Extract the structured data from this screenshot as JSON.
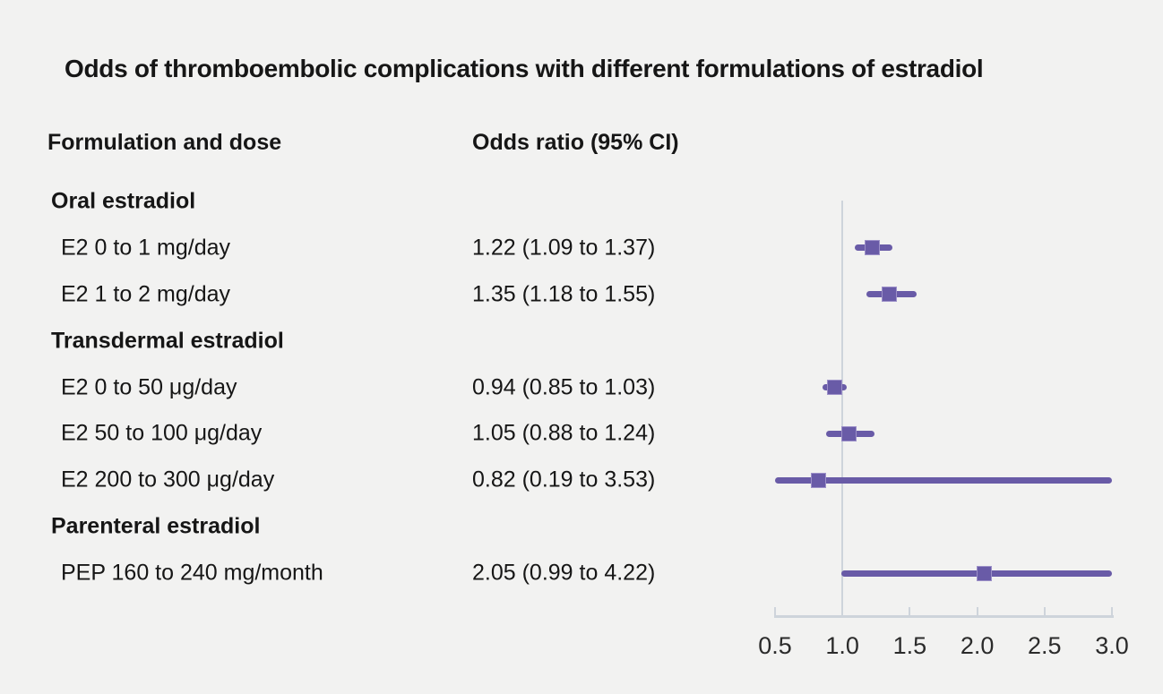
{
  "title": "Odds of thromboembolic complications with different formulations of estradiol",
  "columns": {
    "formulation": "Formulation and dose",
    "odds_ratio": "Odds ratio (95% CI)"
  },
  "rows": [
    {
      "type": "section",
      "label": "Oral estradiol"
    },
    {
      "type": "item",
      "label": "E2 0 to 1 mg/day",
      "value_text": "1.22 (1.09 to 1.37)",
      "or": 1.22,
      "ci_low": 1.09,
      "ci_high": 1.37
    },
    {
      "type": "item",
      "label": "E2 1 to 2 mg/day",
      "value_text": "1.35 (1.18 to 1.55)",
      "or": 1.35,
      "ci_low": 1.18,
      "ci_high": 1.55
    },
    {
      "type": "section",
      "label": "Transdermal estradiol"
    },
    {
      "type": "item",
      "label": "E2 0 to 50 μg/day",
      "value_text": "0.94 (0.85 to 1.03)",
      "or": 0.94,
      "ci_low": 0.85,
      "ci_high": 1.03
    },
    {
      "type": "item",
      "label": "E2 50 to 100 μg/day",
      "value_text": "1.05 (0.88 to 1.24)",
      "or": 1.05,
      "ci_low": 0.88,
      "ci_high": 1.24
    },
    {
      "type": "item",
      "label": "E2 200 to 300 μg/day",
      "value_text": "0.82 (0.19 to 3.53)",
      "or": 0.82,
      "ci_low": 0.19,
      "ci_high": 3.53
    },
    {
      "type": "section",
      "label": "Parenteral estradiol"
    },
    {
      "type": "item",
      "label": "PEP 160 to 240 mg/month",
      "value_text": "2.05 (0.99 to 4.22)",
      "or": 2.05,
      "ci_low": 0.99,
      "ci_high": 4.22
    }
  ],
  "chart_data": {
    "type": "forest",
    "title": "Odds of thromboembolic complications with different formulations of estradiol",
    "xlabel": "Odds ratio (95% CI)",
    "xlim": [
      0.5,
      3.0
    ],
    "xticks": [
      0.5,
      1.0,
      1.5,
      2.0,
      2.5,
      3.0
    ],
    "xtick_labels": [
      "0.5",
      "1.0",
      "1.5",
      "2.0",
      "2.5",
      "3.0"
    ],
    "reference_line": 1.0,
    "clip_to_xlim": true,
    "points": [
      {
        "group": "Oral estradiol",
        "label": "E2 0 to 1 mg/day",
        "or": 1.22,
        "ci_low": 1.09,
        "ci_high": 1.37
      },
      {
        "group": "Oral estradiol",
        "label": "E2 1 to 2 mg/day",
        "or": 1.35,
        "ci_low": 1.18,
        "ci_high": 1.55
      },
      {
        "group": "Transdermal estradiol",
        "label": "E2 0 to 50 μg/day",
        "or": 0.94,
        "ci_low": 0.85,
        "ci_high": 1.03
      },
      {
        "group": "Transdermal estradiol",
        "label": "E2 50 to 100 μg/day",
        "or": 1.05,
        "ci_low": 0.88,
        "ci_high": 1.24
      },
      {
        "group": "Transdermal estradiol",
        "label": "E2 200 to 300 μg/day",
        "or": 0.82,
        "ci_low": 0.19,
        "ci_high": 3.53
      },
      {
        "group": "Parenteral estradiol",
        "label": "PEP 160 to 240 mg/month",
        "or": 2.05,
        "ci_low": 0.99,
        "ci_high": 4.22
      }
    ]
  },
  "colors": {
    "background": "#f2f2f1",
    "text": "#161616",
    "tick_text": "#2b2b2b",
    "marker_purple": "#695ba7",
    "marker_edge": "#9c90c8",
    "axis_gray": "#ced4db"
  }
}
